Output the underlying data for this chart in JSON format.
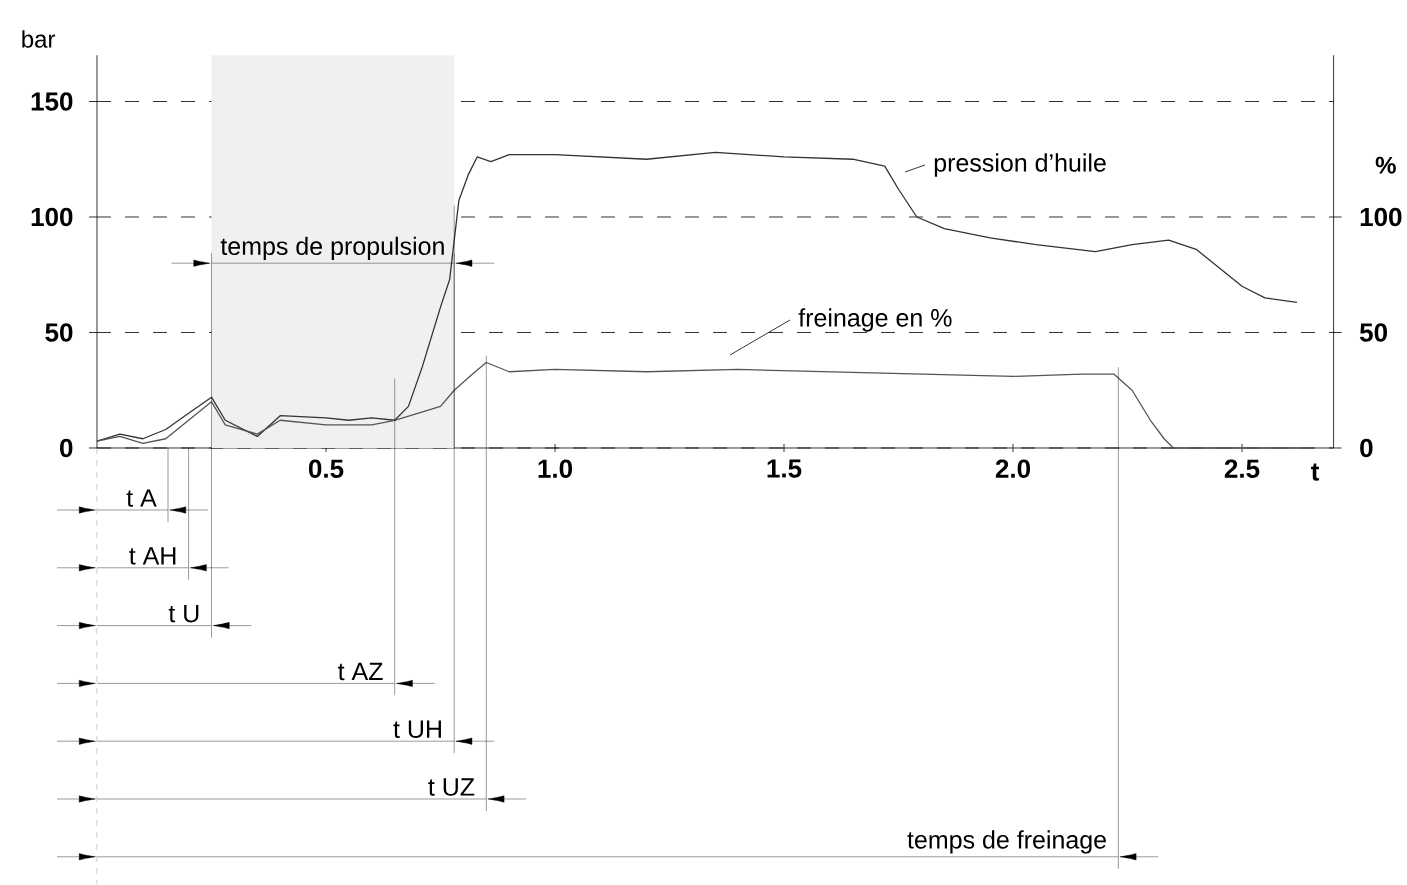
{
  "chart_data": {
    "type": "line",
    "xlabel": "t",
    "ylabel": "bar",
    "y2label": "%",
    "xlim": [
      0,
      2.7
    ],
    "xticks": [
      0.5,
      {
        "value": 1.0,
        "label": "1.0"
      },
      1.5,
      {
        "value": 2.0,
        "label": "2.0"
      },
      2.5
    ],
    "ylim": [
      0,
      170
    ],
    "yticks": [
      0,
      50,
      100,
      150
    ],
    "y2lim": [
      0,
      170
    ],
    "y2ticks": [
      0,
      50,
      100
    ],
    "grid": "y",
    "line_style": "solid",
    "series": [
      {
        "color": "#333333",
        "x": [
          0,
          0.05,
          0.1,
          0.15,
          0.2,
          0.25,
          0.28,
          0.35,
          0.4,
          0.5,
          0.55,
          0.6,
          0.65,
          0.68,
          0.71,
          0.75,
          0.77,
          0.79,
          0.81,
          0.83,
          0.86,
          0.9,
          1.0,
          1.2,
          1.35,
          1.5,
          1.65,
          1.72,
          1.75,
          1.79,
          1.85,
          1.95,
          2.05,
          2.18,
          2.26,
          2.34,
          2.4,
          2.45,
          2.5,
          2.55,
          2.62
        ],
        "values": [
          3,
          6,
          4,
          8,
          15,
          22,
          12,
          5,
          14,
          13,
          12,
          13,
          12,
          18,
          35,
          61,
          73,
          107,
          118,
          126,
          124,
          127,
          127,
          125,
          128,
          126,
          125,
          122,
          112,
          100,
          95,
          91,
          88,
          85,
          88,
          90,
          86,
          78,
          70,
          65,
          63
        ]
      },
      {
        "color": "#555555",
        "axis": "y2",
        "x": [
          0,
          0.05,
          0.1,
          0.15,
          0.2,
          0.25,
          0.28,
          0.35,
          0.4,
          0.5,
          0.6,
          0.65,
          0.7,
          0.75,
          0.78,
          0.82,
          0.85,
          0.9,
          1.0,
          1.2,
          1.4,
          1.6,
          1.8,
          2.0,
          2.15,
          2.22,
          2.26,
          2.3,
          2.33,
          2.35,
          2.65
        ],
        "values": [
          3,
          5,
          2,
          4,
          12,
          20,
          10,
          6,
          12,
          10,
          10,
          12,
          15,
          18,
          25,
          32,
          37,
          33,
          34,
          33,
          34,
          33,
          32,
          31,
          32,
          32,
          25,
          12,
          4,
          0,
          0
        ]
      }
    ],
    "annotations": [
      "pression d’huile",
      "freinage en %"
    ],
    "bands": [
      {
        "axis": "x",
        "from": 0.25,
        "to": 0.78,
        "label": "temps de propulsion",
        "color": "#f0f0f0"
      }
    ],
    "ref_lines": [
      {
        "axis": "x",
        "value": 0.155,
        "label": "t A"
      },
      {
        "axis": "x",
        "value": 0.2,
        "label": "t AH"
      },
      {
        "axis": "x",
        "value": 0.25,
        "label": "t U"
      },
      {
        "axis": "x",
        "value": 0.65,
        "label": "t AZ"
      },
      {
        "axis": "x",
        "value": 0.78,
        "label": "t UH"
      },
      {
        "axis": "x",
        "value": 0.85,
        "label": "t UZ"
      },
      {
        "axis": "x",
        "value": 2.23,
        "label": "temps de freinage"
      }
    ]
  }
}
